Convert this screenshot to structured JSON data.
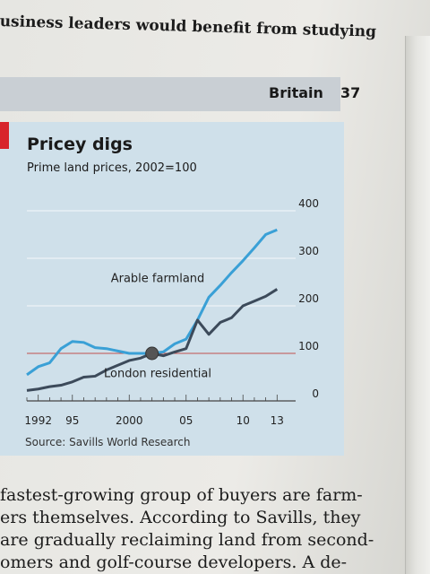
{
  "header": {
    "top_text": "usiness leaders would benefit from studying",
    "section": "Britain",
    "page_number": "37"
  },
  "chart_data": {
    "type": "line",
    "title": "Pricey digs",
    "subtitle": "Prime land prices, 2002=100",
    "source": "Source: Savills World Research",
    "x_tick_labels": [
      "1992",
      "95",
      "2000",
      "05",
      "10",
      "13"
    ],
    "x_ticks": [
      1992,
      1995,
      2000,
      2005,
      2010,
      2013
    ],
    "y_ticks": [
      0,
      100,
      200,
      300,
      400
    ],
    "xlim": [
      1991,
      2014
    ],
    "ylim": [
      0,
      400
    ],
    "baseline": 100,
    "baseline_color": "#c0504d",
    "highlight_point": {
      "x": 2002,
      "y": 100
    },
    "series": [
      {
        "name": "Arable farmland",
        "color": "#3aa0d6",
        "x": [
          1991,
          1992,
          1993,
          1994,
          1995,
          1996,
          1997,
          1998,
          1999,
          2000,
          2001,
          2002,
          2003,
          2004,
          2005,
          2006,
          2007,
          2008,
          2009,
          2010,
          2011,
          2012,
          2013
        ],
        "values": [
          55,
          72,
          80,
          110,
          125,
          123,
          112,
          110,
          105,
          100,
          100,
          100,
          103,
          120,
          130,
          170,
          218,
          243,
          270,
          295,
          322,
          350,
          360
        ]
      },
      {
        "name": "London residential",
        "color": "#3c4a5a",
        "x": [
          1991,
          1992,
          1993,
          1994,
          1995,
          1996,
          1997,
          1998,
          1999,
          2000,
          2001,
          2002,
          2003,
          2004,
          2005,
          2006,
          2007,
          2008,
          2009,
          2010,
          2011,
          2012,
          2013
        ],
        "values": [
          22,
          25,
          30,
          33,
          40,
          50,
          52,
          65,
          75,
          85,
          90,
          100,
          95,
          103,
          110,
          170,
          140,
          165,
          175,
          200,
          210,
          220,
          235
        ]
      }
    ]
  },
  "body": {
    "lines": [
      "fastest-growing group of buyers are farm-",
      "ers themselves. According to Savills, they",
      "are gradually reclaiming land from second-",
      "omers and golf-course developers. A de-"
    ]
  }
}
